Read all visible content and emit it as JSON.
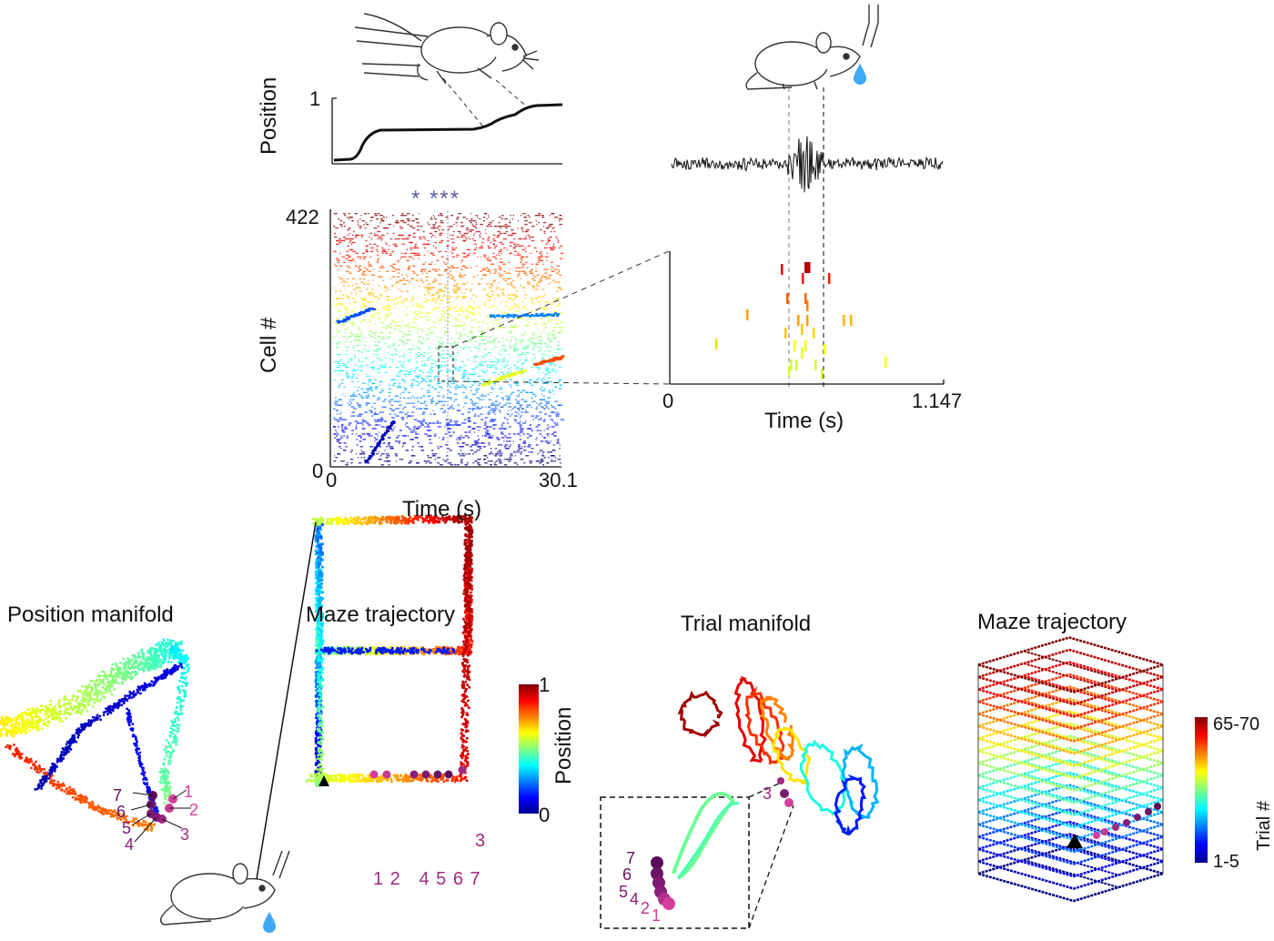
{
  "top_left": {
    "position_label": "Position",
    "position_max": "1",
    "raster_ylabel": "Cell #",
    "raster_ymax": "422",
    "raster_ymin": "0",
    "raster_xmin": "0",
    "raster_xmax": "30.1",
    "raster_xlabel": "Time (s)",
    "markers": "*  ***"
  },
  "top_right": {
    "zoom_xmin": "0",
    "zoom_xmax": "1.147",
    "zoom_xlabel": "Time (s)"
  },
  "bottom": {
    "position_manifold_title": "Position manifold",
    "maze_trajectory_title_1": "Maze trajectory",
    "trial_manifold_title": "Trial manifold",
    "maze_trajectory_title_2": "Maze trajectory",
    "position_colorbar_max": "1",
    "position_colorbar_min": "0",
    "position_colorbar_label": "Position",
    "trial_colorbar_max": "65-70",
    "trial_colorbar_min": "1-5",
    "trial_colorbar_label": "Trial #",
    "manifold_points_1": [
      "1",
      "2",
      "3",
      "4",
      "5",
      "6",
      "7"
    ],
    "maze_points_1": "1 2   4 5 6 7",
    "maze_point_3": "3",
    "trial_manifold_point_3": "3",
    "inset_points": [
      "7",
      "6",
      "5",
      "4",
      "2",
      "1"
    ]
  },
  "colors": {
    "jet_low": "#00008f",
    "jet_mid": "#80ff80",
    "jet_high": "#800000",
    "ripple_marker": "#800080",
    "ripple_light": "#d63f9c",
    "star_color": "#5b5ea6",
    "water_drop": "#3fa9f5"
  }
}
